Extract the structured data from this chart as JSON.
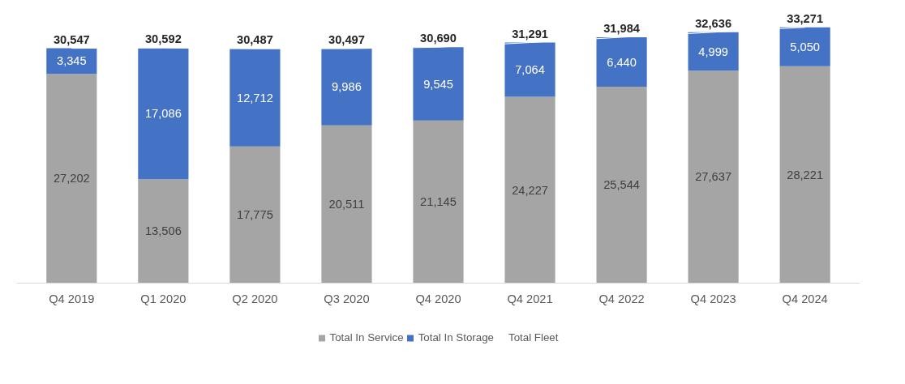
{
  "chart_data": {
    "type": "bar",
    "stacked": true,
    "legend": "bottom",
    "tick_labels": "x",
    "categories": [
      "Q4 2019",
      "Q1 2020",
      "Q2 2020",
      "Q3 2020",
      "Q4 2020",
      "Q4 2021",
      "Q4 2022",
      "Q4 2023",
      "Q4 2024"
    ],
    "series": [
      {
        "name": "Total In Service",
        "color": "#a5a5a5",
        "values": [
          27202,
          13506,
          17775,
          20511,
          21145,
          24227,
          25544,
          27637,
          28221
        ],
        "value_labels": [
          "27,202",
          "13,506",
          "17,775",
          "20,511",
          "21,145",
          "24,227",
          "25,544",
          "27,637",
          "28,221"
        ]
      },
      {
        "name": "Total In Storage",
        "color": "#4472c4",
        "values": [
          3345,
          17086,
          12712,
          9986,
          9545,
          7064,
          6440,
          4999,
          5050
        ],
        "value_labels": [
          "3,345",
          "17,086",
          "12,712",
          "9,986",
          "9,545",
          "7,064",
          "6,440",
          "4,999",
          "5,050"
        ]
      },
      {
        "name": "Total Fleet",
        "type": "line",
        "color": "#ffffff",
        "values": [
          30547,
          30592,
          30487,
          30497,
          30690,
          31291,
          31984,
          32636,
          33271
        ],
        "value_labels": [
          "30,547",
          "30,592",
          "30,487",
          "30,497",
          "30,690",
          "31,291",
          "31,984",
          "32,636",
          "33,271"
        ]
      }
    ]
  }
}
